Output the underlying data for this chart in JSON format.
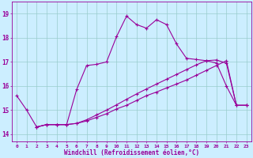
{
  "background_color": "#cceeff",
  "grid_color": "#99cccc",
  "line_color": "#990099",
  "xlabel": "Windchill (Refroidissement éolien,°C)",
  "ylabel_ticks": [
    14,
    15,
    16,
    17,
    18,
    19
  ],
  "xlim": [
    -0.5,
    23.5
  ],
  "ylim": [
    13.7,
    19.5
  ],
  "xticks": [
    0,
    1,
    2,
    3,
    4,
    5,
    6,
    7,
    8,
    9,
    10,
    11,
    12,
    13,
    14,
    15,
    16,
    17,
    18,
    19,
    20,
    21,
    22,
    23
  ],
  "line1_x": [
    0,
    1,
    2,
    3,
    4,
    5,
    6,
    7,
    8,
    9,
    10,
    11,
    12,
    13,
    14,
    15,
    16,
    17,
    18,
    19,
    20,
    21,
    22,
    23
  ],
  "line1_y": [
    15.6,
    15.0,
    14.3,
    14.4,
    14.4,
    14.4,
    15.85,
    16.85,
    16.9,
    17.0,
    18.05,
    18.9,
    18.55,
    18.4,
    18.75,
    18.55,
    17.75,
    17.15,
    17.1,
    17.05,
    16.95,
    16.0,
    15.2,
    15.2
  ],
  "line2_x": [
    2,
    3,
    4,
    5,
    6,
    7,
    8,
    9,
    10,
    11,
    12,
    13,
    14,
    15,
    16,
    17,
    18,
    19,
    20,
    21,
    22,
    23
  ],
  "line2_y": [
    14.3,
    14.4,
    14.4,
    14.4,
    14.45,
    14.55,
    14.7,
    14.85,
    15.05,
    15.2,
    15.4,
    15.6,
    15.75,
    15.92,
    16.08,
    16.25,
    16.45,
    16.65,
    16.85,
    17.05,
    15.2,
    15.2
  ],
  "line3_x": [
    2,
    3,
    4,
    5,
    6,
    7,
    8,
    9,
    10,
    11,
    12,
    13,
    14,
    15,
    16,
    17,
    18,
    19,
    20,
    21,
    22,
    23
  ],
  "line3_y": [
    14.3,
    14.4,
    14.4,
    14.4,
    14.45,
    14.6,
    14.8,
    15.0,
    15.22,
    15.45,
    15.67,
    15.88,
    16.08,
    16.28,
    16.48,
    16.68,
    16.88,
    17.05,
    17.08,
    16.95,
    15.2,
    15.2
  ]
}
